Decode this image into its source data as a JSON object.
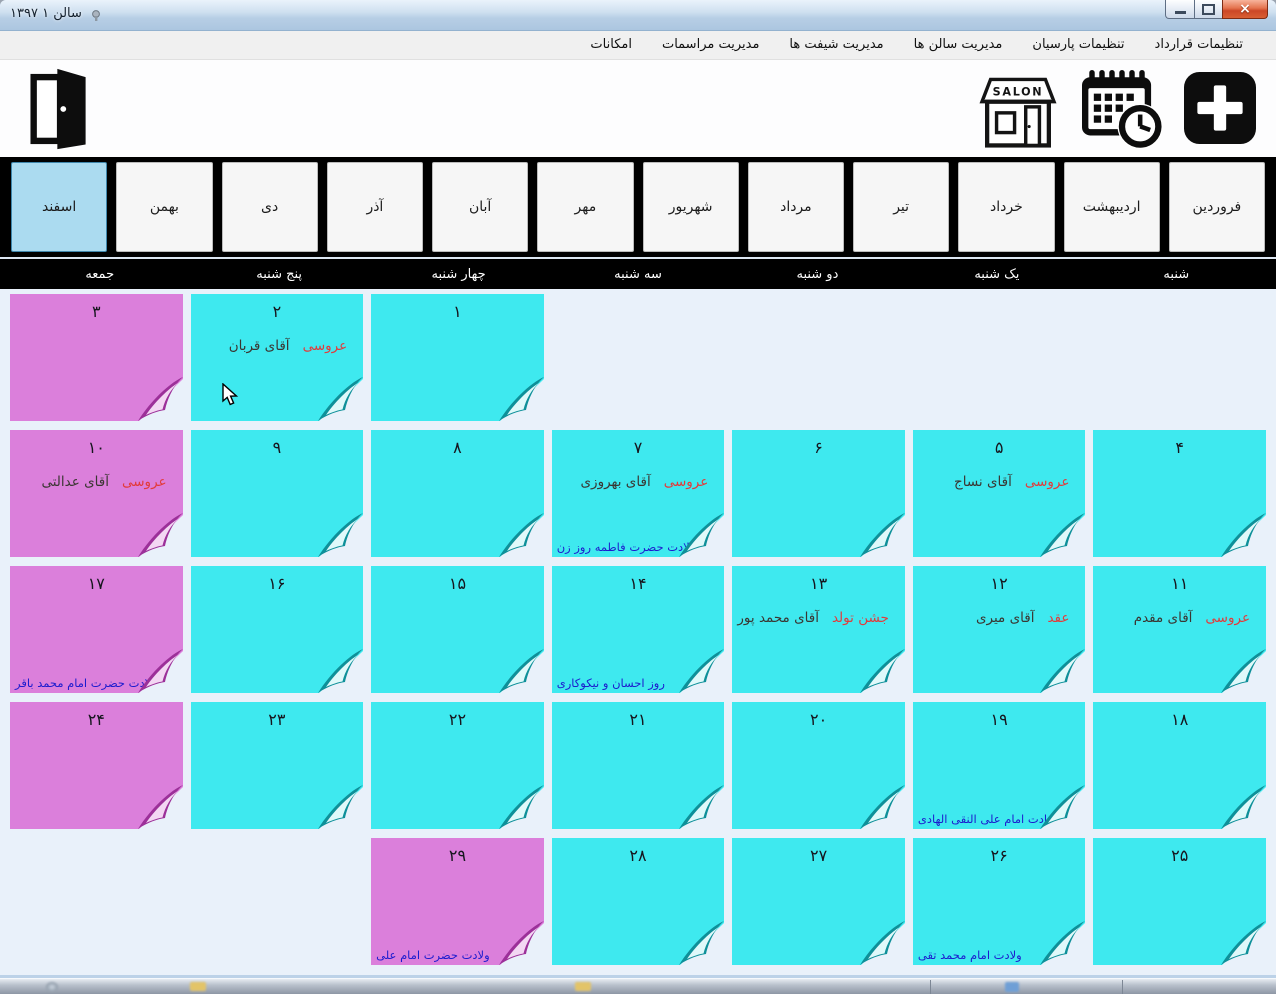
{
  "window": {
    "title": "سالن ۱   ۱۳۹۷"
  },
  "menu": {
    "items": [
      "تنظیمات قرارداد",
      "تنظیمات پارسیان",
      "مدیریت سالن ها",
      "مدیریت شیفت ها",
      "مدیریت مراسمات",
      "امکانات"
    ]
  },
  "toolbar": {
    "salon_sign": "SALON"
  },
  "months": {
    "selected": "اسفند",
    "items": [
      {
        "label": "فروردین"
      },
      {
        "label": "اردیبهشت"
      },
      {
        "label": "خرداد"
      },
      {
        "label": "تیر"
      },
      {
        "label": "مرداد"
      },
      {
        "label": "شهریور"
      },
      {
        "label": "مهر"
      },
      {
        "label": "آبان"
      },
      {
        "label": "آذر"
      },
      {
        "label": "دی"
      },
      {
        "label": "بهمن"
      },
      {
        "label": "اسفند",
        "selected": true
      }
    ]
  },
  "weekdays": [
    "شنبه",
    "یک شنبه",
    "دو شنبه",
    "سه شنبه",
    "چهار شنبه",
    "پنج شنبه",
    "جمعه"
  ],
  "calendar": {
    "rows": [
      [
        {},
        {},
        {},
        {},
        {
          "num": "۱"
        },
        {
          "num": "۲",
          "event_type": "عروسی",
          "event_name": "آقای  قربان"
        },
        {
          "num": "۳",
          "type": "pink"
        }
      ],
      [
        {
          "num": "۴"
        },
        {
          "num": "۵",
          "event_type": "عروسی",
          "event_name": "آقای نساج"
        },
        {
          "num": "۶"
        },
        {
          "num": "۷",
          "event_type": "عروسی",
          "event_name": "آقای بهروزی",
          "holiday": "ولادت حضرت فاطمه   روز زن"
        },
        {
          "num": "۸"
        },
        {
          "num": "۹"
        },
        {
          "num": "۱۰",
          "type": "pink",
          "event_type": "عروسی",
          "event_name": "آقای عدالتی"
        }
      ],
      [
        {
          "num": "۱۱",
          "event_type": "عروسی",
          "event_name": "آقای مقدم"
        },
        {
          "num": "۱۲",
          "event_type": "عقد",
          "event_name": "آقای میری"
        },
        {
          "num": "۱۳",
          "event_type": "جشن تولد",
          "event_name": "آقای محمد پور"
        },
        {
          "num": "۱۴",
          "holiday": "روز احسان و نیکوکاری"
        },
        {
          "num": "۱۵"
        },
        {
          "num": "۱۶"
        },
        {
          "num": "۱۷",
          "type": "pink",
          "holiday": "ولادت حضرت امام محمد باقر"
        }
      ],
      [
        {
          "num": "۱۸"
        },
        {
          "num": "۱۹",
          "holiday": "شهادت امام علی النقی الهادی"
        },
        {
          "num": "۲۰"
        },
        {
          "num": "۲۱"
        },
        {
          "num": "۲۲"
        },
        {
          "num": "۲۳"
        },
        {
          "num": "۲۴",
          "type": "pink"
        }
      ],
      [
        {
          "num": "۲۵"
        },
        {
          "num": "۲۶",
          "holiday": "ولادت امام محمد تقی"
        },
        {
          "num": "۲۷"
        },
        {
          "num": "۲۸"
        },
        {
          "num": "۲۹",
          "type": "pink",
          "holiday": "ولادت حضرت امام علی"
        },
        {},
        {}
      ]
    ]
  },
  "colors": {
    "cyan_cell": "#3EE9EF",
    "pink_cell": "#DB7FDB",
    "event_red": "#E23B3B",
    "holiday_blue": "#1C1CCE",
    "selected_tab": "#ABDBF0"
  }
}
